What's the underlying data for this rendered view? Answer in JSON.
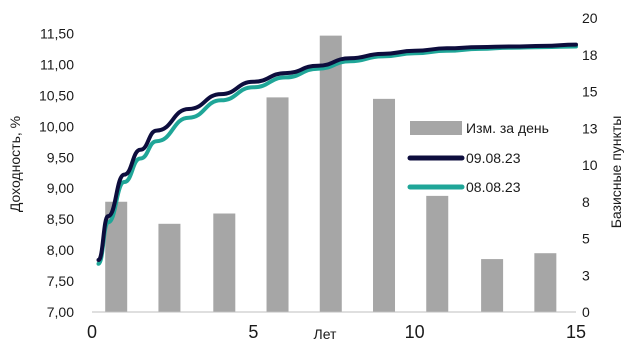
{
  "chart_data": {
    "type": "bar+line",
    "title": "",
    "xlabel": "Лет",
    "ylabel_left": "Доходность, %",
    "ylabel_right": "Базисные пункты",
    "xlim": [
      0,
      15
    ],
    "x_ticks": [
      "0",
      "5",
      "10",
      "15"
    ],
    "ylim_left": [
      7.0,
      11.75
    ],
    "y_left_ticks": [
      "7,00",
      "7,50",
      "8,00",
      "8,50",
      "9,00",
      "9,50",
      "10,00",
      "10,50",
      "11,00",
      "11,50"
    ],
    "ylim_right": [
      0,
      20
    ],
    "y_right_ticks": [
      "0",
      "3",
      "5",
      "8",
      "10",
      "13",
      "15",
      "18",
      "20"
    ],
    "grid": false,
    "legend_position": "right",
    "bars": {
      "name": "Изм. за день",
      "color": "#a6a6a6",
      "x": [
        0.75,
        2.4,
        4.1,
        5.75,
        7.4,
        9.05,
        10.7,
        12.4,
        14.05
      ],
      "values": [
        7.5,
        6.0,
        6.7,
        14.6,
        18.8,
        14.5,
        7.9,
        3.6,
        4.0
      ]
    },
    "series": [
      {
        "name": "09.08.23",
        "color": "#0d0d3d",
        "x": [
          0.2,
          0.5,
          1,
          1.5,
          2,
          3,
          4,
          5,
          6,
          7,
          8,
          9,
          10,
          11,
          12,
          13,
          14,
          15
        ],
        "values": [
          7.84,
          8.55,
          9.22,
          9.62,
          9.93,
          10.28,
          10.52,
          10.72,
          10.86,
          10.98,
          11.1,
          11.17,
          11.22,
          11.26,
          11.28,
          11.29,
          11.3,
          11.32
        ]
      },
      {
        "name": "08.08.23",
        "color": "#1fa698",
        "x": [
          0.2,
          0.5,
          1,
          1.5,
          2,
          3,
          4,
          5,
          6,
          7,
          8,
          9,
          10,
          11,
          12,
          13,
          14,
          15
        ],
        "values": [
          7.78,
          8.45,
          9.1,
          9.48,
          9.76,
          10.14,
          10.42,
          10.63,
          10.79,
          10.93,
          11.05,
          11.13,
          11.18,
          11.22,
          11.25,
          11.27,
          11.28,
          11.29
        ]
      }
    ]
  }
}
